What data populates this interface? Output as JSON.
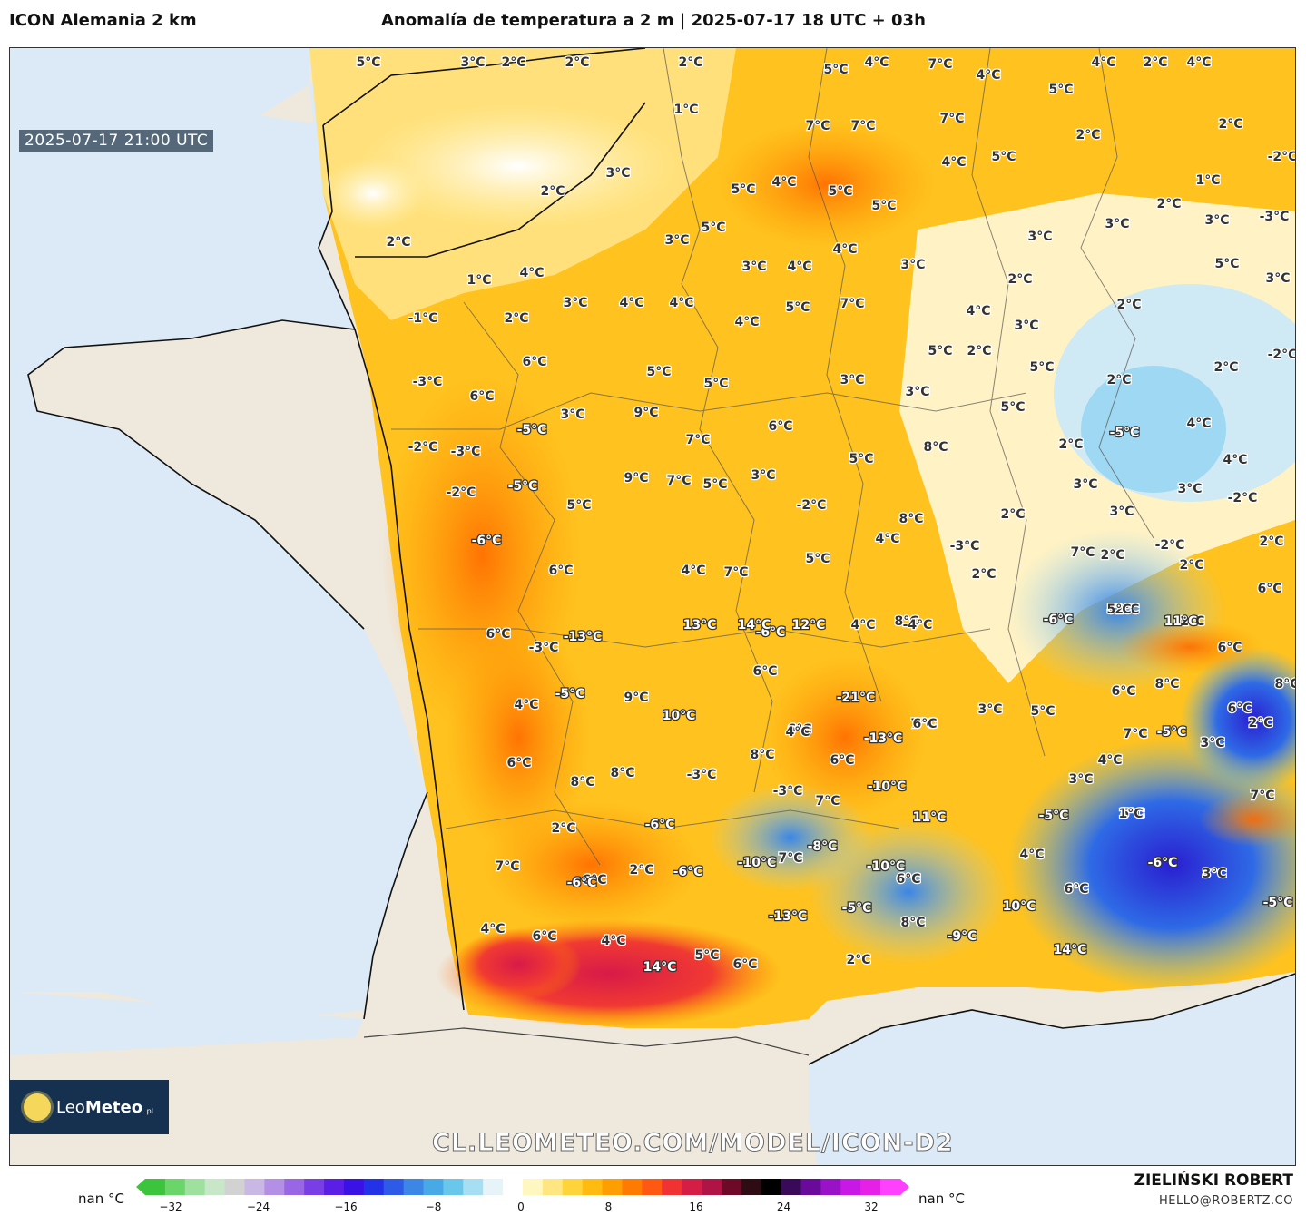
{
  "header": {
    "model": "ICON Alemania 2 km",
    "title": "Anomalía de temperatura a 2 m | 2025-07-17 18 UTC + 03h"
  },
  "map": {
    "timestamp": "2025-07-17 21:00 UTC",
    "labels": [
      {
        "t": "5°C"
      },
      {
        "t": "3°C"
      },
      {
        "t": "2°C"
      },
      {
        "t": "2°C"
      },
      {
        "t": "2°C"
      },
      {
        "t": "5°C"
      },
      {
        "t": "4°C"
      },
      {
        "t": "7°C"
      },
      {
        "t": "4°C"
      },
      {
        "t": "4°C"
      },
      {
        "t": "2°C"
      },
      {
        "t": "4°C"
      },
      {
        "t": "1°C"
      },
      {
        "t": "7°C"
      },
      {
        "t": "7°C"
      },
      {
        "t": "7°C"
      },
      {
        "t": "5°C"
      },
      {
        "t": "2°C"
      },
      {
        "t": "2°C"
      },
      {
        "t": "3°C"
      },
      {
        "t": "2°C"
      },
      {
        "t": "5°C"
      },
      {
        "t": "4°C"
      },
      {
        "t": "5°C"
      },
      {
        "t": "5°C"
      },
      {
        "t": "4°C"
      },
      {
        "t": "5°C"
      },
      {
        "t": "1°C"
      },
      {
        "t": "-2°C"
      },
      {
        "t": "2°C"
      },
      {
        "t": "3°C"
      },
      {
        "t": "5°C"
      },
      {
        "t": "3°C"
      },
      {
        "t": "4°C"
      },
      {
        "t": "3°C"
      },
      {
        "t": "2°C"
      },
      {
        "t": "3°C"
      },
      {
        "t": "-3°C"
      },
      {
        "t": "1°C"
      },
      {
        "t": "4°C"
      },
      {
        "t": "3°C"
      },
      {
        "t": "4°C"
      },
      {
        "t": "3°C"
      },
      {
        "t": "5°C"
      },
      {
        "t": "-1°C"
      },
      {
        "t": "2°C"
      },
      {
        "t": "3°C"
      },
      {
        "t": "4°C"
      },
      {
        "t": "4°C"
      },
      {
        "t": "4°C"
      },
      {
        "t": "5°C"
      },
      {
        "t": "7°C"
      },
      {
        "t": "4°C"
      },
      {
        "t": "3°C"
      },
      {
        "t": "2°C"
      },
      {
        "t": "2°C"
      },
      {
        "t": "3°C"
      },
      {
        "t": "-3°C"
      },
      {
        "t": "6°C"
      },
      {
        "t": "6°C"
      },
      {
        "t": "5°C"
      },
      {
        "t": "5°C"
      },
      {
        "t": "3°C"
      },
      {
        "t": "3°C"
      },
      {
        "t": "5°C"
      },
      {
        "t": "2°C"
      },
      {
        "t": "5°C"
      },
      {
        "t": "2°C"
      },
      {
        "t": "2°C"
      },
      {
        "t": "-2°C"
      },
      {
        "t": "-5°C"
      },
      {
        "t": "3°C"
      },
      {
        "t": "9°C"
      },
      {
        "t": "6°C"
      },
      {
        "t": "5°C"
      },
      {
        "t": "4°C"
      },
      {
        "t": "2°C"
      },
      {
        "t": "-5°C"
      },
      {
        "t": "-2°C"
      },
      {
        "t": "-3°C"
      },
      {
        "t": "7°C"
      },
      {
        "t": "8°C"
      },
      {
        "t": "5°C"
      },
      {
        "t": "3°C"
      },
      {
        "t": "4°C"
      },
      {
        "t": "-2°C"
      },
      {
        "t": "-5°C"
      },
      {
        "t": "9°C"
      },
      {
        "t": "7°C"
      },
      {
        "t": "5°C"
      },
      {
        "t": "3°C"
      },
      {
        "t": "2°C"
      },
      {
        "t": "3°C"
      },
      {
        "t": "-2°C"
      },
      {
        "t": "5°C"
      },
      {
        "t": "-2°C"
      },
      {
        "t": "8°C"
      },
      {
        "t": "4°C"
      },
      {
        "t": "-3°C"
      },
      {
        "t": "3°C"
      },
      {
        "t": "2°C"
      },
      {
        "t": "7°C"
      },
      {
        "t": "2°C"
      },
      {
        "t": "-2°C"
      },
      {
        "t": "2°C"
      },
      {
        "t": "-6°C"
      },
      {
        "t": "6°C"
      },
      {
        "t": "4°C"
      },
      {
        "t": "7°C"
      },
      {
        "t": "5°C"
      },
      {
        "t": "6°C"
      },
      {
        "t": "-2°C"
      },
      {
        "t": "2°C"
      },
      {
        "t": "-2°C"
      },
      {
        "t": "8°C"
      },
      {
        "t": "-6°C"
      },
      {
        "t": "11°C"
      },
      {
        "t": "5°C"
      },
      {
        "t": "6°C"
      },
      {
        "t": "-3°C"
      },
      {
        "t": "-13°C"
      },
      {
        "t": "-6°C"
      },
      {
        "t": "6°C"
      },
      {
        "t": "6°C"
      },
      {
        "t": "6°C"
      },
      {
        "t": "8°C"
      },
      {
        "t": "4°C"
      },
      {
        "t": "-5°C"
      },
      {
        "t": "9°C"
      },
      {
        "t": "-21°C"
      },
      {
        "t": "7°C"
      },
      {
        "t": "5°C"
      },
      {
        "t": "6°C"
      },
      {
        "t": "8°C"
      },
      {
        "t": "6°C"
      },
      {
        "t": "2°C"
      },
      {
        "t": "10°C"
      },
      {
        "t": "6°C"
      },
      {
        "t": "4°C"
      },
      {
        "t": "-13°C"
      },
      {
        "t": "3°C"
      },
      {
        "t": "7°C"
      },
      {
        "t": "-5°C"
      },
      {
        "t": "3°C"
      },
      {
        "t": "6°C"
      },
      {
        "t": "8°C"
      },
      {
        "t": "8°C"
      },
      {
        "t": "-3°C"
      },
      {
        "t": "8°C"
      },
      {
        "t": "6°C"
      },
      {
        "t": "6°C"
      },
      {
        "t": "4°C"
      },
      {
        "t": "3°C"
      },
      {
        "t": "5°C"
      },
      {
        "t": "7°C"
      },
      {
        "t": "-3°C"
      },
      {
        "t": "7°C"
      },
      {
        "t": "-10°C"
      },
      {
        "t": "11°C"
      },
      {
        "t": "-5°C"
      },
      {
        "t": "1°C"
      },
      {
        "t": "2°C"
      },
      {
        "t": "-6°C"
      },
      {
        "t": "-8°C"
      },
      {
        "t": "-10°C"
      },
      {
        "t": "7°C"
      },
      {
        "t": "6°C"
      },
      {
        "t": "2°C"
      },
      {
        "t": "-6°C"
      },
      {
        "t": "7°C"
      },
      {
        "t": "6°C"
      },
      {
        "t": "4°C"
      },
      {
        "t": "6°C"
      },
      {
        "t": "-6°C"
      },
      {
        "t": "3°C"
      },
      {
        "t": "-6°C"
      },
      {
        "t": "-5°C"
      },
      {
        "t": "-10°C"
      },
      {
        "t": "-13°C"
      },
      {
        "t": "8°C"
      },
      {
        "t": "-5°C"
      },
      {
        "t": "4°C"
      },
      {
        "t": "6°C"
      },
      {
        "t": "4°C"
      },
      {
        "t": "-9°C"
      },
      {
        "t": "10°C"
      },
      {
        "t": "14°C"
      },
      {
        "t": "14°C"
      },
      {
        "t": "5°C"
      },
      {
        "t": "6°C"
      },
      {
        "t": "2°C"
      },
      {
        "t": "13°C"
      },
      {
        "t": "14°C"
      },
      {
        "t": "12°C"
      },
      {
        "t": "4°C"
      },
      {
        "t": "-4°C"
      }
    ]
  },
  "logo": {
    "brand_light": "Leo",
    "brand_bold": "Meteo",
    "suffix": ".pl"
  },
  "watermark": "CL.LEOMETEO.COM/MODEL/ICON-D2",
  "credits": {
    "name": "ZIELIŃSKI ROBERT",
    "email": "HELLO@ROBERTZ.CO"
  },
  "colorbar": {
    "nan_left": "nan °C",
    "nan_right": "nan °C",
    "ticks": [
      "−32",
      "−24",
      "−16",
      "−8",
      "0",
      "8",
      "16",
      "24",
      "32"
    ],
    "colors": [
      "#3dc43d",
      "#6ad66a",
      "#9ee09e",
      "#c8e6c8",
      "#d2d2d2",
      "#c9b8e6",
      "#b48fe6",
      "#9966e6",
      "#7a3ee6",
      "#5a1ee6",
      "#3a12e6",
      "#2332e6",
      "#2d5ae6",
      "#3c86e6",
      "#47aae6",
      "#6ac7ec",
      "#a6def4",
      "#e6f4fa",
      "#ffffff",
      "#fff6c0",
      "#ffe680",
      "#ffd43a",
      "#ffbb10",
      "#ff9e00",
      "#ff7a00",
      "#ff5810",
      "#f03232",
      "#d41e46",
      "#b01446",
      "#6e0a28",
      "#2e0c14",
      "#000000",
      "#3a0a5a",
      "#6a0a9a",
      "#9a12c8",
      "#c818e6",
      "#e620e6",
      "#ff40ff"
    ]
  }
}
